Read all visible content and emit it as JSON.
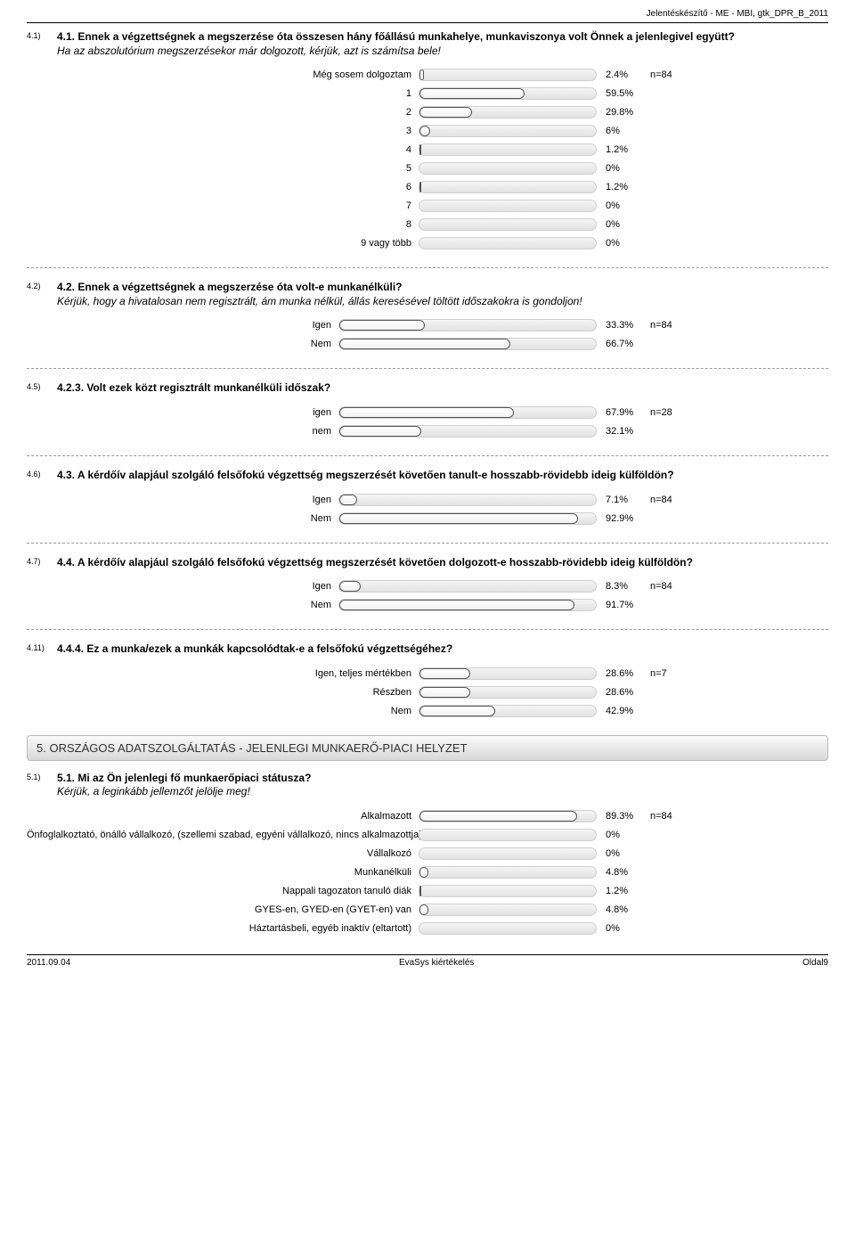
{
  "header": "Jelentéskészítő - ME - MBI, gtk_DPR_B_2011",
  "bar_track_color_top": "#f5f5f5",
  "bar_track_color_bottom": "#e2e2e2",
  "bar_track_border": "#d0d0d0",
  "bar_fill_border": "#555555",
  "dashed_color": "#999999",
  "section_bg_top": "#fafafa",
  "section_bg_bottom": "#d8d8d8",
  "questions": [
    {
      "tag": "4.1)",
      "title": "4.1. Ennek a végzettségnek a megszerzése óta összesen hány főállású munkahelye, munkaviszonya volt Önnek a jelenlegivel együtt?",
      "sub": "Ha az abszolutórium megszerzésekor már dolgozott, kérjük, azt is számítsa bele!",
      "label_width": 440,
      "track_width": 200,
      "n": "n=84",
      "rows": [
        {
          "label": "Még sosem dolgoztam",
          "pct": 2.4,
          "pct_label": "2.4%",
          "show_n": true
        },
        {
          "label": "1",
          "pct": 59.5,
          "pct_label": "59.5%"
        },
        {
          "label": "2",
          "pct": 29.8,
          "pct_label": "29.8%"
        },
        {
          "label": "3",
          "pct": 6,
          "pct_label": "6%"
        },
        {
          "label": "4",
          "pct": 1.2,
          "pct_label": "1.2%"
        },
        {
          "label": "5",
          "pct": 0,
          "pct_label": "0%"
        },
        {
          "label": "6",
          "pct": 1.2,
          "pct_label": "1.2%"
        },
        {
          "label": "7",
          "pct": 0,
          "pct_label": "0%"
        },
        {
          "label": "8",
          "pct": 0,
          "pct_label": "0%"
        },
        {
          "label": "9 vagy több",
          "pct": 0,
          "pct_label": "0%"
        }
      ]
    },
    {
      "tag": "4.2)",
      "title": "4.2. Ennek a végzettségnek a megszerzése óta volt-e munkanélküli?",
      "sub": "Kérjük, hogy a hivatalosan nem regisztrált, ám munka nélkül, állás keresésével töltött időszakokra is gondoljon!",
      "label_width": 350,
      "track_width": 290,
      "n": "n=84",
      "rows": [
        {
          "label": "Igen",
          "pct": 33.3,
          "pct_label": "33.3%",
          "show_n": true
        },
        {
          "label": "Nem",
          "pct": 66.7,
          "pct_label": "66.7%"
        }
      ]
    },
    {
      "tag": "4.5)",
      "title": "4.2.3. Volt ezek közt regisztrált munkanélküli időszak?",
      "sub": "",
      "label_width": 350,
      "track_width": 290,
      "n": "n=28",
      "rows": [
        {
          "label": "igen",
          "pct": 67.9,
          "pct_label": "67.9%",
          "show_n": true
        },
        {
          "label": "nem",
          "pct": 32.1,
          "pct_label": "32.1%"
        }
      ]
    },
    {
      "tag": "4.6)",
      "title": "4.3. A kérdőív alapjául szolgáló felsőfokú végzettség megszerzését követően tanult-e hosszabb-rövidebb ideig külföldön?",
      "sub": "",
      "label_width": 350,
      "track_width": 290,
      "n": "n=84",
      "rows": [
        {
          "label": "Igen",
          "pct": 7.1,
          "pct_label": "7.1%",
          "show_n": true
        },
        {
          "label": "Nem",
          "pct": 92.9,
          "pct_label": "92.9%"
        }
      ]
    },
    {
      "tag": "4.7)",
      "title": "4.4. A kérdőív alapjául szolgáló felsőfokú végzettség megszerzését követően dolgozott-e hosszabb-rövidebb ideig külföldön?",
      "sub": "",
      "label_width": 350,
      "track_width": 290,
      "n": "n=84",
      "rows": [
        {
          "label": "Igen",
          "pct": 8.3,
          "pct_label": "8.3%",
          "show_n": true
        },
        {
          "label": "Nem",
          "pct": 91.7,
          "pct_label": "91.7%"
        }
      ]
    },
    {
      "tag": "4.11)",
      "title": "4.4.4. Ez a munka/ezek a munkák kapcsolódtak-e a felsőfokú végzettségéhez?",
      "sub": "",
      "label_width": 440,
      "track_width": 200,
      "n": "n=7",
      "rows": [
        {
          "label": "Igen, teljes mértékben",
          "pct": 28.6,
          "pct_label": "28.6%",
          "show_n": true
        },
        {
          "label": "Részben",
          "pct": 28.6,
          "pct_label": "28.6%"
        },
        {
          "label": "Nem",
          "pct": 42.9,
          "pct_label": "42.9%"
        }
      ]
    }
  ],
  "section5_title": "5. ORSZÁGOS ADATSZOLGÁLTATÁS - JELENLEGI MUNKAERŐ-PIACI HELYZET",
  "q51": {
    "tag": "5.1)",
    "title": "5.1. Mi az Ön jelenlegi fő munkaerőpiaci státusza?",
    "sub": "Kérjük, a leginkább jellemzőt jelölje meg!",
    "label_width": 440,
    "track_width": 200,
    "n": "n=84",
    "rows": [
      {
        "label": "Alkalmazott",
        "pct": 89.3,
        "pct_label": "89.3%",
        "show_n": true
      },
      {
        "label": "Önfoglalkoztató, önálló vállalkozó, (szellemi szabad, egyéni vállalkozó, nincs alkalmazottja)",
        "pct": 0,
        "pct_label": "0%"
      },
      {
        "label": "Vállalkozó",
        "pct": 0,
        "pct_label": "0%"
      },
      {
        "label": "Munkanélküli",
        "pct": 4.8,
        "pct_label": "4.8%"
      },
      {
        "label": "Nappali tagozaton tanuló diák",
        "pct": 1.2,
        "pct_label": "1.2%"
      },
      {
        "label": "GYES-en, GYED-en (GYET-en) van",
        "pct": 4.8,
        "pct_label": "4.8%"
      },
      {
        "label": "Háztartásbeli, egyéb inaktív (eltartott)",
        "pct": 0,
        "pct_label": "0%"
      }
    ]
  },
  "footer": {
    "left": "2011.09.04",
    "center": "EvaSys kiértékelés",
    "right": "Oldal9"
  }
}
